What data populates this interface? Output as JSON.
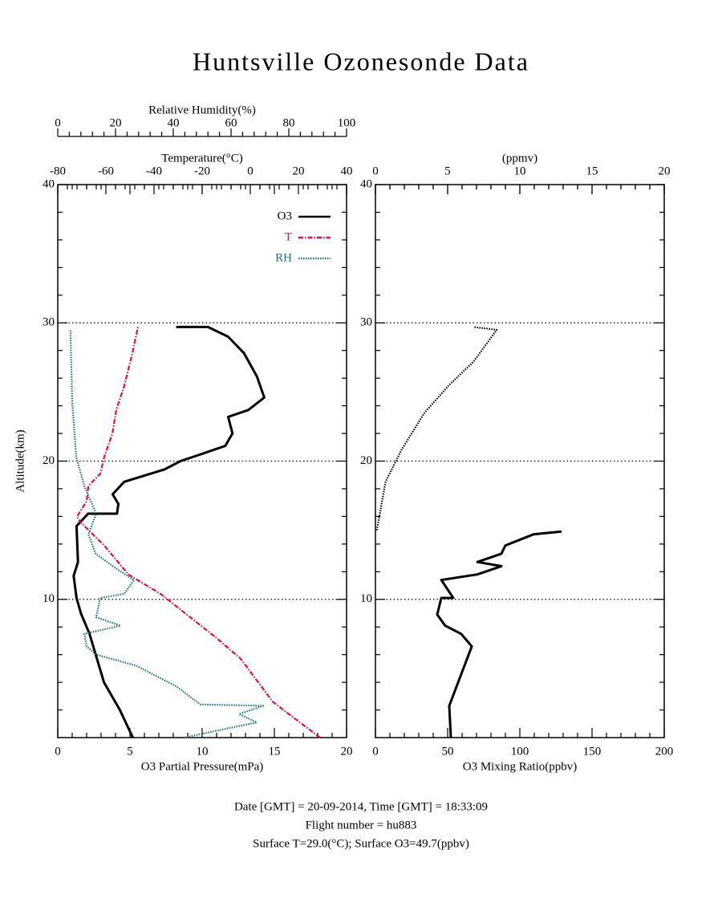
{
  "chart_data": [
    {
      "type": "line",
      "title": "Huntsville Ozonesonde Data",
      "legend": "upper right",
      "grid": true,
      "y": {
        "label": "Altitude(km)",
        "lim": [
          0,
          40
        ],
        "ticks": [
          10,
          20,
          30,
          40
        ]
      },
      "x": {
        "label": "O3 Partial Pressure(mPa)",
        "lim": [
          0,
          20
        ],
        "ticks": [
          0,
          5,
          10,
          15,
          20
        ]
      },
      "x2": {
        "label": "Temperature(°C)",
        "lim": [
          -80,
          40
        ],
        "ticks": [
          -80,
          -60,
          -40,
          -20,
          0,
          20,
          40
        ]
      },
      "x3": {
        "label": "Relative Humidity(%)",
        "lim": [
          0,
          100
        ],
        "ticks": [
          0,
          20,
          40,
          60,
          80,
          100
        ]
      },
      "series": [
        {
          "name": "O3",
          "color": "#000000",
          "style": "solid",
          "axis": "x",
          "values": [
            5.2,
            4.3,
            3.2,
            2.2,
            1.6,
            1.3,
            1.1,
            1.4,
            1.3,
            2.1,
            4.1,
            4.2,
            3.8,
            4.6,
            7.4,
            8.5,
            10.2,
            11.6,
            12.1,
            11.8,
            13.2,
            14.3,
            13.8,
            12.9,
            11.8,
            10.4,
            8.2
          ],
          "altitude": [
            0,
            2,
            4,
            7.5,
            9,
            10.1,
            11.7,
            12.7,
            15.3,
            16.2,
            16.2,
            16.9,
            17.6,
            18.5,
            19.4,
            20,
            20.6,
            21.1,
            22,
            23.2,
            23.7,
            24.6,
            26.1,
            27.8,
            29,
            29.7,
            29.7
          ]
        },
        {
          "name": "T",
          "color": "#e0103f",
          "style": "dashdot",
          "axis": "x2",
          "values": [
            29,
            16,
            9.3,
            -4,
            -14,
            -37.3,
            -50.7,
            -60.7,
            -70.7,
            -72,
            -68,
            -67.3,
            -62.3,
            -60.7,
            -57.3,
            -55.7,
            -52.3,
            -49,
            -46.7
          ],
          "altitude": [
            0,
            1.7,
            2.6,
            5.7,
            7.2,
            10.4,
            11.8,
            13.9,
            15.6,
            16,
            17.1,
            18.2,
            19.1,
            20.3,
            22,
            23.7,
            25.5,
            27.8,
            29.7
          ]
        },
        {
          "name": "RH",
          "color": "#1f6f7a",
          "style": "dotted",
          "axis": "x3",
          "values": [
            43.9,
            55,
            68.9,
            62.8,
            71.1,
            49.4,
            41.1,
            27.2,
            13.3,
            10,
            9.2,
            21.7,
            13.3,
            14.7,
            23,
            26.4,
            21.1,
            13.1,
            10.6,
            13.3,
            9.2,
            6.4,
            5,
            4.4
          ],
          "altitude": [
            0,
            0.5,
            1.1,
            1.7,
            2.3,
            2.4,
            3.7,
            5.2,
            6,
            6.6,
            7.5,
            8.1,
            8.7,
            10.1,
            10.4,
            11.4,
            12.1,
            13.3,
            14.7,
            16.2,
            18.2,
            20.3,
            24.3,
            29.5
          ]
        }
      ]
    },
    {
      "type": "line",
      "grid": true,
      "y": {
        "lim": [
          0,
          40
        ],
        "ticks": [
          10,
          20,
          30,
          40
        ]
      },
      "x": {
        "label": "O3 Mixing Ratio(ppbv)",
        "lim": [
          0,
          200
        ],
        "ticks": [
          0,
          50,
          100,
          150,
          200
        ]
      },
      "x2": {
        "label": "(ppmv)",
        "lim": [
          0,
          20
        ],
        "ticks": [
          0,
          5,
          10,
          15,
          20
        ]
      },
      "series": [
        {
          "color": "#000000",
          "style": "solid",
          "axis": "x",
          "values": [
            52.2,
            51.1,
            66.7,
            59.4,
            48.3,
            42.8,
            45.6,
            53.9,
            45.6,
            70.6,
            87.2,
            70.6,
            87.2,
            90,
            109.4,
            128.9
          ],
          "altitude": [
            0,
            2.3,
            6.6,
            7.5,
            8.1,
            8.9,
            10.1,
            10.1,
            11.4,
            11.8,
            12.4,
            12.7,
            13.3,
            13.9,
            14.7,
            14.9
          ]
        },
        {
          "color": "#000000",
          "style": "dotted",
          "axis": "x2",
          "values": [
            0.1,
            0.7,
            1.8,
            3.4,
            5.1,
            6.8,
            8.4,
            6.8
          ],
          "altitude": [
            15,
            18.5,
            20.8,
            23.5,
            25.5,
            27.2,
            29.5,
            29.7
          ]
        }
      ]
    }
  ],
  "notes": [
    "Date [GMT] = 20-09-2014,  Time [GMT] = 18:33:09",
    "Flight number = hu883",
    "Surface T=29.0(°C); Surface O3=49.7(ppbv)"
  ]
}
